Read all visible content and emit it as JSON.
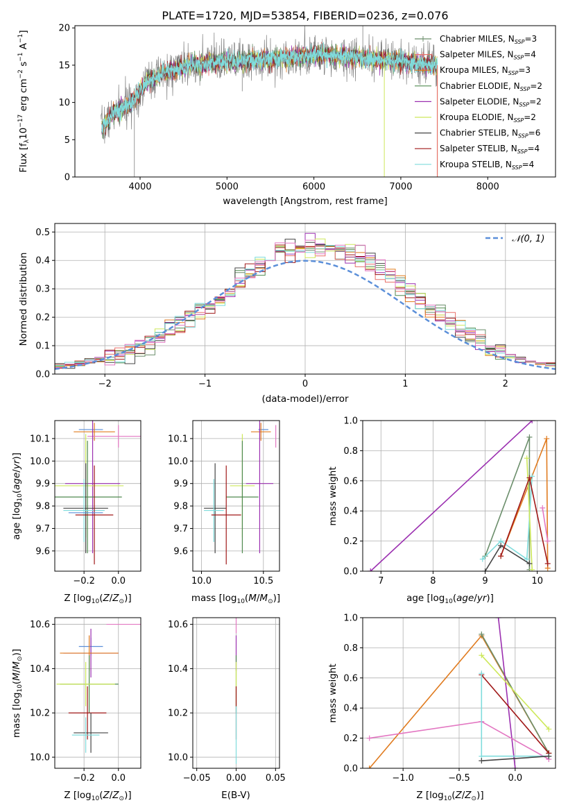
{
  "chart_data": [
    {
      "id": "spectrum",
      "type": "line",
      "title": "PLATE=1720, MJD=53854, FIBERID=0236, z=0.076",
      "xlabel": "wavelength [Angstrom, rest frame]",
      "ylabel": "Flux [f$_\\lambda$10$^{-17}$ erg cm$^{-2}$ s$^{-1}$ A$^{-1}$]",
      "xlim": [
        3250,
        8780
      ],
      "ylim": [
        0,
        20.3
      ],
      "xticks": [
        4000,
        5000,
        6000,
        7000,
        8000
      ],
      "yticks": [
        0,
        5,
        10,
        15,
        20
      ],
      "grid": false,
      "legend_position": "upper-right",
      "series": [
        {
          "name": "Chabrier MILES, N$_{SSP}$=3",
          "color": "#6b8e6b",
          "marker": "+"
        },
        {
          "name": "Salpeter MILES, N$_{SSP}$=4",
          "color": "#e8716a",
          "marker": "+"
        },
        {
          "name": "Kroupa MILES, N$_{SSP}$=3",
          "color": "#e07b1f",
          "marker": "+"
        },
        {
          "name": "Chabrier ELODIE, N$_{SSP}$=2",
          "color": "#4f8a4f"
        },
        {
          "name": "Salpeter ELODIE, N$_{SSP}$=2",
          "color": "#9b2fb0"
        },
        {
          "name": "Kroupa ELODIE, N$_{SSP}$=2",
          "color": "#cde85a"
        },
        {
          "name": "Chabrier STELIB, N$_{SSP}$=6",
          "color": "#444444"
        },
        {
          "name": "Salpeter STELIB, N$_{SSP}$=4",
          "color": "#a01818"
        },
        {
          "name": "Kroupa STELIB, N$_{SSP}$=4",
          "color": "#7fdcdc"
        }
      ],
      "data_color": "#7f7f7f",
      "continuum": {
        "x": [
          3550,
          3700,
          3900,
          4000,
          4100,
          4300,
          4500,
          4800,
          5000,
          5200,
          5500,
          5800,
          6000,
          6300,
          6600,
          6900,
          7200,
          7420
        ],
        "y": [
          6.5,
          8.5,
          10.0,
          11.5,
          13.0,
          14.0,
          14.8,
          15.3,
          15.5,
          15.6,
          15.8,
          16.2,
          16.4,
          16.2,
          15.9,
          15.6,
          15.2,
          15.0
        ]
      },
      "spikes": [
        {
          "x": 3934,
          "y": 0
        },
        {
          "x": 5176,
          "y": 11.5
        },
        {
          "x": 6563,
          "y": 20.3
        },
        {
          "x": 6810,
          "y": 0
        },
        {
          "x": 7420,
          "y": 0
        }
      ]
    },
    {
      "id": "residuals",
      "type": "line",
      "xlabel": "(data-model)/error",
      "ylabel": "Normed distribution",
      "xlim": [
        -2.5,
        2.5
      ],
      "ylim": [
        0,
        0.53
      ],
      "xticks": [
        -2,
        -1,
        0,
        1,
        2
      ],
      "yticks": [
        0.0,
        0.1,
        0.2,
        0.3,
        0.4,
        0.5
      ],
      "grid": true,
      "legend_position": "upper-right",
      "reference_label": "$\\mathcal{N}(0,1)$",
      "reference_color": "#5b8fd9",
      "bin_width": 0.1,
      "colors": [
        "#6b8e6b",
        "#e8716a",
        "#e07b1f",
        "#4f8a4f",
        "#9b2fb0",
        "#cde85a",
        "#444444",
        "#a01818",
        "#7fdcdc",
        "#e377c2"
      ]
    },
    {
      "id": "age-vs-z",
      "type": "scatter",
      "xlabel": "Z [log$_{10}$($Z/Z_\\odot$)]",
      "ylabel": "age  [log$_{10}$($age/yr$)]",
      "xlim": [
        -0.37,
        0.13
      ],
      "ylim": [
        9.51,
        10.18
      ],
      "xticks": [
        -0.2,
        0.0
      ],
      "xtick_labels": [
        "−0.2",
        "0.0"
      ],
      "yticks": [
        9.6,
        9.7,
        9.8,
        9.9,
        10.0,
        10.1
      ],
      "grid": true,
      "points": [
        {
          "x": -0.16,
          "xe": 0.07,
          "y": 10.14,
          "ye": 0.0,
          "color": "#5b8fd9"
        },
        {
          "x": -0.14,
          "xe": 0.12,
          "y": 10.13,
          "ye": 0.04,
          "color": "#e07b1f"
        },
        {
          "x": 0.0,
          "xe": 0.18,
          "y": 10.11,
          "ye": 0.05,
          "color": "#e377c2"
        },
        {
          "x": -0.15,
          "xe": 0.16,
          "y": 9.9,
          "ye": 0.31,
          "color": "#9b2fb0"
        },
        {
          "x": -0.19,
          "xe": 0.22,
          "y": 9.89,
          "ye": 0.23,
          "color": "#cde85a"
        },
        {
          "x": -0.18,
          "xe": 0.2,
          "y": 9.84,
          "ye": 0.25,
          "color": "#4f8a4f"
        },
        {
          "x": -0.19,
          "xe": 0.13,
          "y": 9.79,
          "ye": 0.2,
          "color": "#444444"
        },
        {
          "x": -0.2,
          "xe": 0.12,
          "y": 9.78,
          "ye": 0.14,
          "color": "#7fdcdc"
        },
        {
          "x": -0.14,
          "xe": 0.11,
          "y": 9.76,
          "ye": 0.22,
          "color": "#a01818"
        },
        {
          "x": -0.19,
          "xe": 0.1,
          "y": 9.77,
          "ye": 0.0,
          "color": "#5b8fd9"
        }
      ]
    },
    {
      "id": "age-vs-mass",
      "type": "scatter",
      "xlabel": "mass [log$_{10}$($M/M_\\odot$)]",
      "xlim": [
        9.93,
        10.63
      ],
      "ylim": [
        9.51,
        10.18
      ],
      "xticks": [
        10.0,
        10.5
      ],
      "yticks": [
        9.6,
        9.7,
        9.8,
        9.9,
        10.0,
        10.1
      ],
      "grid": true,
      "points": [
        {
          "x": 10.5,
          "xe": 0.04,
          "y": 10.14,
          "ye": 0.0,
          "color": "#5b8fd9"
        },
        {
          "x": 10.48,
          "xe": 0.08,
          "y": 10.13,
          "ye": 0.04,
          "color": "#e07b1f"
        },
        {
          "x": 10.6,
          "xe": 0.0,
          "y": 10.11,
          "ye": 0.05,
          "color": "#e377c2"
        },
        {
          "x": 10.47,
          "xe": 0.11,
          "y": 9.9,
          "ye": 0.31,
          "color": "#9b2fb0"
        },
        {
          "x": 10.33,
          "xe": 0.1,
          "y": 9.89,
          "ye": 0.23,
          "color": "#cde85a"
        },
        {
          "x": 10.33,
          "xe": 0.13,
          "y": 9.84,
          "ye": 0.25,
          "color": "#4f8a4f"
        },
        {
          "x": 10.11,
          "xe": 0.09,
          "y": 9.79,
          "ye": 0.2,
          "color": "#444444"
        },
        {
          "x": 10.1,
          "xe": 0.08,
          "y": 9.78,
          "ye": 0.14,
          "color": "#7fdcdc"
        },
        {
          "x": 10.2,
          "xe": 0.12,
          "y": 9.76,
          "ye": 0.22,
          "color": "#a01818"
        }
      ]
    },
    {
      "id": "weight-vs-age",
      "type": "line",
      "xlabel": "age  [log$_{10}$($age/yr$)]",
      "ylabel": "mass weight",
      "xlim": [
        6.65,
        10.35
      ],
      "ylim": [
        0,
        1.0
      ],
      "xticks": [
        7,
        8,
        9,
        10
      ],
      "yticks": [
        0.0,
        0.2,
        0.4,
        0.6,
        0.8,
        1.0
      ],
      "grid": true,
      "series": [
        {
          "color": "#9b2fb0",
          "x": [
            6.8,
            9.9
          ],
          "y": [
            0.0,
            1.0
          ]
        },
        {
          "color": "#e07b1f",
          "x": [
            9.3,
            10.18,
            10.2
          ],
          "y": [
            0.1,
            0.88,
            0.02
          ]
        },
        {
          "color": "#6b8e6b",
          "x": [
            9.0,
            9.85,
            9.85
          ],
          "y": [
            0.1,
            0.89,
            0.01
          ]
        },
        {
          "color": "#7fdcdc",
          "x": [
            8.95,
            9.3,
            9.8,
            9.9
          ],
          "y": [
            0.08,
            0.2,
            0.08,
            0.63
          ]
        },
        {
          "color": "#cde85a",
          "x": [
            9.8,
            9.9
          ],
          "y": [
            0.75,
            0.01
          ]
        },
        {
          "color": "#444444",
          "x": [
            9.0,
            9.3,
            9.85
          ],
          "y": [
            0.0,
            0.17,
            0.05
          ]
        },
        {
          "color": "#a01818",
          "x": [
            9.3,
            9.85,
            10.2
          ],
          "y": [
            0.1,
            0.62,
            0.05
          ]
        },
        {
          "color": "#e377c2",
          "x": [
            10.1,
            10.2
          ],
          "y": [
            0.42,
            0.2
          ]
        }
      ]
    },
    {
      "id": "mass-vs-z",
      "type": "scatter",
      "xlabel": "Z [log$_{10}$($Z/Z_\\odot$)]",
      "ylabel": "mass [log$_{10}$($M/M_\\odot$)]",
      "xlim": [
        -0.37,
        0.13
      ],
      "ylim": [
        9.95,
        10.63
      ],
      "xticks": [
        -0.2,
        0.0
      ],
      "xtick_labels": [
        "−0.2",
        "0.0"
      ],
      "yticks": [
        10.0,
        10.2,
        10.4,
        10.6
      ],
      "grid": true,
      "points": [
        {
          "x": 0.03,
          "xe": 0.1,
          "y": 10.6,
          "ye": 0.0,
          "color": "#e377c2"
        },
        {
          "x": -0.16,
          "xe": 0.07,
          "y": 10.5,
          "ye": 0.04,
          "color": "#5b8fd9"
        },
        {
          "x": -0.16,
          "xe": 0.16,
          "y": 10.47,
          "ye": 0.11,
          "color": "#9b2fb0"
        },
        {
          "x": -0.17,
          "xe": 0.17,
          "y": 10.47,
          "ye": 0.08,
          "color": "#e07b1f"
        },
        {
          "x": -0.17,
          "xe": 0.17,
          "y": 10.33,
          "ye": 0.13,
          "color": "#4f8a4f"
        },
        {
          "x": -0.19,
          "xe": 0.17,
          "y": 10.33,
          "ye": 0.1,
          "color": "#cde85a"
        },
        {
          "x": -0.18,
          "xe": 0.11,
          "y": 10.2,
          "ye": 0.12,
          "color": "#a01818"
        },
        {
          "x": -0.16,
          "xe": 0.1,
          "y": 10.11,
          "ye": 0.09,
          "color": "#444444"
        },
        {
          "x": -0.19,
          "xe": 0.08,
          "y": 10.1,
          "ye": 0.08,
          "color": "#7fdcdc"
        }
      ]
    },
    {
      "id": "mass-vs-ebv",
      "type": "scatter",
      "xlabel": "E(B-V)",
      "xlim": [
        -0.055,
        0.055
      ],
      "ylim": [
        9.95,
        10.63
      ],
      "xticks": [
        -0.05,
        0.0,
        0.05
      ],
      "xtick_labels": [
        "−0.05",
        "0.00",
        "0.05"
      ],
      "yticks": [
        10.0,
        10.2,
        10.4,
        10.6
      ],
      "grid": true,
      "points": [
        {
          "x": 0.0,
          "xe": 0.0,
          "y": 10.6,
          "ye": 0.04,
          "color": "#e377c2"
        },
        {
          "x": 0.0,
          "xe": 0.0,
          "y": 10.47,
          "ye": 0.08,
          "color": "#9b2fb0"
        },
        {
          "x": 0.0,
          "xe": 0.0,
          "y": 10.33,
          "ye": 0.13,
          "color": "#4f8a4f"
        },
        {
          "x": 0.0,
          "xe": 0.0,
          "y": 10.33,
          "ye": 0.1,
          "color": "#cde85a"
        },
        {
          "x": 0.0,
          "xe": 0.0,
          "y": 10.2,
          "ye": 0.12,
          "color": "#a01818"
        },
        {
          "x": 0.0,
          "xe": 0.0,
          "y": 10.1,
          "ye": 0.13,
          "color": "#7fdcdc"
        }
      ]
    },
    {
      "id": "weight-vs-z",
      "type": "line",
      "xlabel": "Z [log$_{10}$($Z/Z_\\odot$)]",
      "ylabel": "mass weight",
      "xlim": [
        -1.36,
        0.36
      ],
      "ylim": [
        0,
        1.0
      ],
      "xticks": [
        -1.0,
        -0.5,
        0.0
      ],
      "xtick_labels": [
        "−1.0",
        "−0.5",
        "0.0"
      ],
      "yticks": [
        0.0,
        0.2,
        0.4,
        0.6,
        0.8,
        1.0
      ],
      "grid": true,
      "series": [
        {
          "color": "#e07b1f",
          "x": [
            -1.3,
            -0.3,
            0.3
          ],
          "y": [
            0.0,
            0.88,
            0.1
          ]
        },
        {
          "color": "#6b8e6b",
          "x": [
            -0.3,
            0.3
          ],
          "y": [
            0.89,
            0.1
          ]
        },
        {
          "color": "#9b2fb0",
          "x": [
            -0.15,
            0.0
          ],
          "y": [
            1.0,
            0.0
          ]
        },
        {
          "color": "#cde85a",
          "x": [
            -0.3,
            0.3
          ],
          "y": [
            0.75,
            0.26
          ]
        },
        {
          "color": "#a01818",
          "x": [
            -0.3,
            0.3
          ],
          "y": [
            0.62,
            0.1
          ]
        },
        {
          "color": "#e377c2",
          "x": [
            -1.3,
            -0.3,
            0.3
          ],
          "y": [
            0.2,
            0.31,
            0.06
          ]
        },
        {
          "color": "#7fdcdc",
          "x": [
            -0.3,
            -0.3,
            0.3
          ],
          "y": [
            0.63,
            0.08,
            0.08
          ]
        },
        {
          "color": "#444444",
          "x": [
            -0.3,
            0.3
          ],
          "y": [
            0.05,
            0.08
          ]
        }
      ]
    }
  ]
}
